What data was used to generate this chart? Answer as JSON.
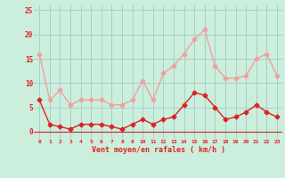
{
  "hours": [
    0,
    1,
    2,
    3,
    4,
    5,
    6,
    7,
    8,
    9,
    10,
    11,
    12,
    13,
    14,
    15,
    16,
    17,
    18,
    19,
    20,
    21,
    22,
    23
  ],
  "wind_avg": [
    6.5,
    1.5,
    1.0,
    0.5,
    1.5,
    1.5,
    1.5,
    1.0,
    0.5,
    1.5,
    2.5,
    1.5,
    2.5,
    3.0,
    5.5,
    8.0,
    7.5,
    5.0,
    2.5,
    3.0,
    4.0,
    5.5,
    4.0,
    3.0
  ],
  "wind_gust": [
    16.0,
    6.5,
    8.5,
    5.5,
    6.5,
    6.5,
    6.5,
    5.5,
    5.5,
    6.5,
    10.5,
    6.5,
    12.0,
    13.5,
    16.0,
    19.0,
    21.0,
    13.5,
    11.0,
    11.0,
    11.5,
    15.0,
    16.0,
    11.5
  ],
  "avg_color": "#dd2222",
  "gust_color": "#f0a0a0",
  "bg_color": "#cceedd",
  "grid_color": "#aacccc",
  "axis_line_color": "#cc2222",
  "xlabel": "Vent moyen/en rafales ( km/h )",
  "xlabel_color": "#dd2222",
  "tick_color": "#dd2222",
  "ylim": [
    -1.5,
    26
  ],
  "yticks": [
    0,
    5,
    10,
    15,
    20,
    25
  ],
  "marker": "D",
  "marker_size": 2.5,
  "linewidth": 1.0
}
